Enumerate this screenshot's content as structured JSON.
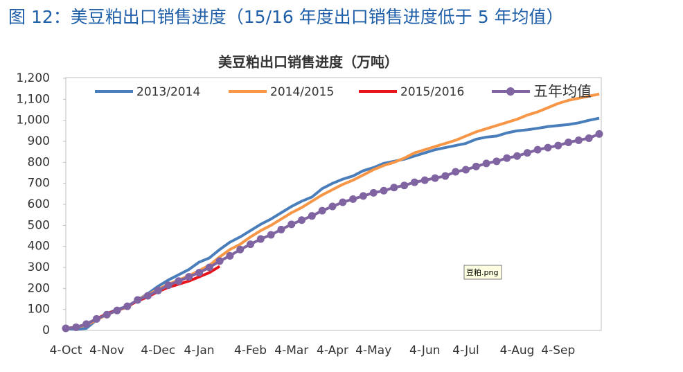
{
  "figure_title": "图 12：美豆粕出口销售进度（15/16 年度出口销售进度低于 5 年均值）",
  "chart_data": {
    "type": "line",
    "title": "美豆粕出口销售进度（万吨）",
    "categories": [
      "4-Oct",
      null,
      null,
      null,
      "4-Nov",
      null,
      null,
      null,
      null,
      "4-Dec",
      null,
      null,
      null,
      "4-Jan",
      null,
      null,
      null,
      null,
      "4-Feb",
      null,
      null,
      null,
      "4-Mar",
      null,
      null,
      null,
      "4-Apr",
      null,
      null,
      null,
      "4-May",
      null,
      null,
      null,
      null,
      "4-Jun",
      null,
      null,
      null,
      "4-Jul",
      null,
      null,
      null,
      null,
      "4-Aug",
      null,
      null,
      null,
      "4-Sep",
      null,
      null,
      null,
      null
    ],
    "series": [
      {
        "name": "2013/2014",
        "color": "#4a7ebb",
        "marker": false,
        "values": [
          10,
          5,
          10,
          50,
          80,
          100,
          115,
          145,
          175,
          210,
          240,
          265,
          290,
          325,
          345,
          385,
          420,
          445,
          475,
          505,
          530,
          560,
          590,
          615,
          635,
          675,
          700,
          720,
          735,
          760,
          775,
          795,
          805,
          815,
          830,
          845,
          860,
          870,
          880,
          890,
          910,
          920,
          925,
          940,
          950,
          955,
          962,
          970,
          975,
          980,
          988,
          1000,
          1010
        ]
      },
      {
        "name": "2014/2015",
        "color": "#f79646",
        "marker": false,
        "values": [
          10,
          15,
          25,
          50,
          75,
          95,
          110,
          145,
          170,
          195,
          220,
          240,
          260,
          285,
          310,
          350,
          385,
          410,
          445,
          475,
          500,
          530,
          560,
          585,
          615,
          645,
          670,
          695,
          715,
          740,
          765,
          785,
          800,
          820,
          845,
          860,
          875,
          890,
          905,
          925,
          945,
          960,
          975,
          990,
          1005,
          1025,
          1040,
          1060,
          1080,
          1095,
          1105,
          1115,
          1125
        ]
      },
      {
        "name": "2015/2016",
        "color": "#e8141b",
        "marker": false,
        "values": [
          10,
          15,
          30,
          55,
          80,
          95,
          115,
          140,
          160,
          185,
          205,
          220,
          235,
          255,
          275,
          305,
          null,
          null,
          null,
          null,
          null,
          null,
          null,
          null,
          null,
          null,
          null,
          null,
          null,
          null,
          null,
          null,
          null,
          null,
          null,
          null,
          null,
          null,
          null,
          null,
          null,
          null,
          null,
          null,
          null,
          null,
          null,
          null,
          null,
          null,
          null,
          null,
          null
        ]
      },
      {
        "name": "五年均值",
        "color": "#8064a2",
        "marker": true,
        "values": [
          10,
          15,
          30,
          55,
          75,
          95,
          115,
          145,
          165,
          190,
          215,
          235,
          255,
          275,
          300,
          330,
          355,
          385,
          410,
          435,
          455,
          480,
          505,
          525,
          545,
          570,
          590,
          610,
          625,
          640,
          655,
          665,
          680,
          690,
          705,
          715,
          725,
          735,
          755,
          765,
          780,
          795,
          805,
          820,
          830,
          845,
          860,
          870,
          880,
          895,
          905,
          915,
          935
        ]
      }
    ],
    "ylim": [
      0,
      1200
    ],
    "yticks": [
      0,
      100,
      200,
      300,
      400,
      500,
      600,
      700,
      800,
      900,
      {
        "value": 1000,
        "label": "1,000"
      },
      {
        "value": 1100,
        "label": "1,100"
      },
      {
        "value": 1200,
        "label": "1,200"
      }
    ],
    "annotations": [
      "豆粕.png"
    ]
  }
}
